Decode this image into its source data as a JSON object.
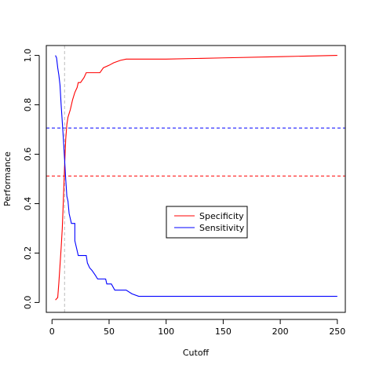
{
  "chart_data": {
    "type": "line",
    "title": "",
    "xlabel": "Cutoff",
    "ylabel": "Performance",
    "xlim": [
      -5,
      257
    ],
    "ylim": [
      -0.04,
      1.04
    ],
    "x_ticks": [
      0,
      50,
      100,
      150,
      200,
      250
    ],
    "x_tick_labels": [
      "0",
      "50",
      "100",
      "150",
      "200",
      "250"
    ],
    "y_ticks": [
      0,
      0.2,
      0.4,
      0.6,
      0.8,
      1.0
    ],
    "y_tick_labels": [
      "0.0",
      "0.2",
      "0.4",
      "0.6",
      "0.8",
      "1.0"
    ],
    "grid": false,
    "legend_position": "center-right",
    "series": [
      {
        "name": "Specificity",
        "color": "#ff0000",
        "points": [
          [
            3,
            0.01
          ],
          [
            5,
            0.02
          ],
          [
            6,
            0.08
          ],
          [
            7,
            0.15
          ],
          [
            8,
            0.22
          ],
          [
            9,
            0.3
          ],
          [
            10,
            0.42
          ],
          [
            11,
            0.55
          ],
          [
            12,
            0.66
          ],
          [
            13,
            0.72
          ],
          [
            14,
            0.75
          ],
          [
            16,
            0.78
          ],
          [
            18,
            0.82
          ],
          [
            20,
            0.85
          ],
          [
            22,
            0.87
          ],
          [
            23,
            0.89
          ],
          [
            25,
            0.89
          ],
          [
            28,
            0.91
          ],
          [
            30,
            0.93
          ],
          [
            40,
            0.93
          ],
          [
            42,
            0.93
          ],
          [
            45,
            0.95
          ],
          [
            50,
            0.96
          ],
          [
            54,
            0.97
          ],
          [
            60,
            0.98
          ],
          [
            65,
            0.985
          ],
          [
            70,
            0.985
          ],
          [
            100,
            0.985
          ],
          [
            150,
            0.99
          ],
          [
            200,
            0.995
          ],
          [
            250,
            1.0
          ]
        ]
      },
      {
        "name": "Sensitivity",
        "color": "#0000ff",
        "points": [
          [
            3,
            1.0
          ],
          [
            4,
            0.99
          ],
          [
            5,
            0.95
          ],
          [
            6,
            0.92
          ],
          [
            7,
            0.88
          ],
          [
            8,
            0.8
          ],
          [
            9,
            0.73
          ],
          [
            10,
            0.66
          ],
          [
            11,
            0.58
          ],
          [
            12,
            0.5
          ],
          [
            13,
            0.43
          ],
          [
            14,
            0.41
          ],
          [
            15,
            0.36
          ],
          [
            16,
            0.34
          ],
          [
            17,
            0.32
          ],
          [
            20,
            0.32
          ],
          [
            20,
            0.25
          ],
          [
            22,
            0.21
          ],
          [
            23,
            0.19
          ],
          [
            30,
            0.19
          ],
          [
            31,
            0.16
          ],
          [
            33,
            0.14
          ],
          [
            35,
            0.13
          ],
          [
            38,
            0.11
          ],
          [
            40,
            0.095
          ],
          [
            47,
            0.095
          ],
          [
            48,
            0.075
          ],
          [
            52,
            0.075
          ],
          [
            55,
            0.05
          ],
          [
            65,
            0.05
          ],
          [
            70,
            0.035
          ],
          [
            76,
            0.025
          ],
          [
            100,
            0.025
          ],
          [
            250,
            0.025
          ]
        ]
      }
    ],
    "reference_lines": [
      {
        "orientation": "horizontal",
        "value": 0.706,
        "color": "#0000ff",
        "style": "dashed"
      },
      {
        "orientation": "horizontal",
        "value": 0.512,
        "color": "#ff0000",
        "style": "dashed"
      },
      {
        "orientation": "vertical",
        "value": 11,
        "color": "#bbbbbb",
        "style": "dashed"
      }
    ]
  }
}
